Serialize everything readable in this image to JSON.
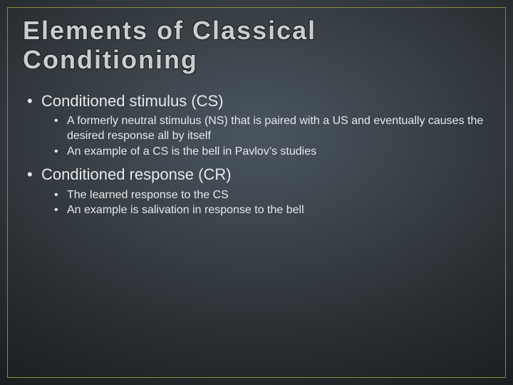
{
  "slide": {
    "title": "Elements of Classical Conditioning",
    "background": {
      "gradient_center": "#4a5560",
      "gradient_mid": "#3a4248",
      "gradient_outer": "#1a1d20",
      "border_color": "#8a8a3a"
    },
    "title_style": {
      "color": "#c9cdd0",
      "outline_color": "#1c1c1c",
      "fontsize": 36,
      "letter_spacing": 2,
      "font_weight": "bold"
    },
    "body_text_color": "#e6e8ea",
    "bullets": [
      {
        "text": "Conditioned stimulus (CS)",
        "fontsize": 22,
        "sub": [
          {
            "text": "A formerly neutral stimulus (NS) that is paired with a US and eventually causes the desired response all by itself",
            "fontsize": 16
          },
          {
            "text": "An example of a CS is the bell in Pavlov’s studies",
            "fontsize": 16
          }
        ]
      },
      {
        "text": "Conditioned response (CR)",
        "fontsize": 22,
        "sub": [
          {
            "text": "The learned response to the CS",
            "fontsize": 16
          },
          {
            "text": "An example is salivation in response to the bell",
            "fontsize": 16
          }
        ]
      }
    ]
  }
}
